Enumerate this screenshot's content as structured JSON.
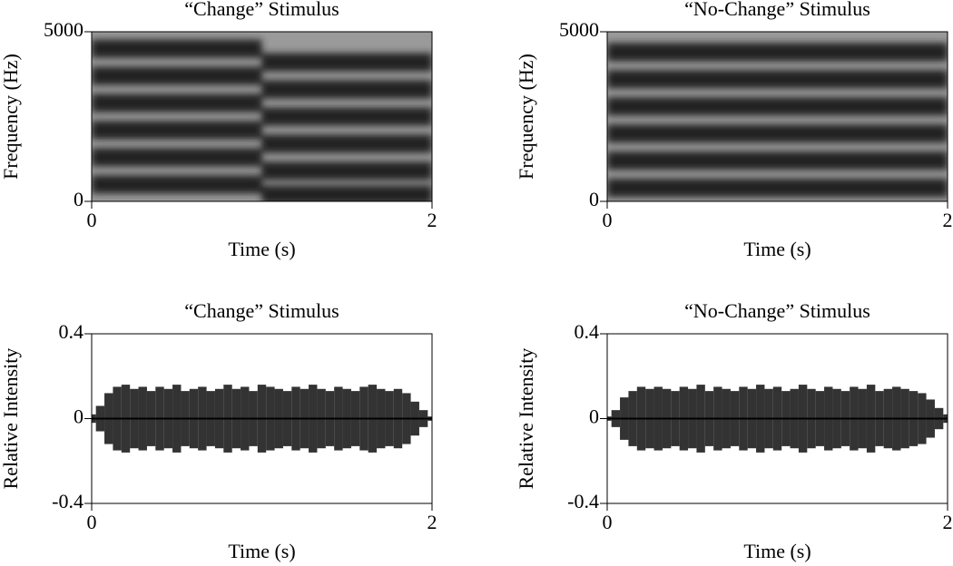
{
  "chart_data": [
    {
      "type": "spectrogram",
      "title": "“Change” Stimulus",
      "xlabel": "Time (s)",
      "ylabel": "Frequency (Hz)",
      "xlim": [
        0,
        2
      ],
      "xticks": [
        0,
        2
      ],
      "ylim": [
        0,
        5000
      ],
      "yticks": [
        0,
        5000
      ],
      "segments": [
        {
          "x": [
            0,
            1
          ],
          "bands": [
            4500,
            3700,
            2900,
            2100,
            1300,
            500
          ]
        },
        {
          "x": [
            1,
            2
          ],
          "bands": [
            4100,
            3300,
            2500,
            1700,
            900,
            200
          ]
        }
      ]
    },
    {
      "type": "spectrogram",
      "title": "“No-Change” Stimulus",
      "xlabel": "Time (s)",
      "ylabel": "Frequency (Hz)",
      "xlim": [
        0,
        2
      ],
      "xticks": [
        0,
        2
      ],
      "ylim": [
        0,
        5000
      ],
      "yticks": [
        0,
        5000
      ],
      "segments": [
        {
          "x": [
            0,
            2
          ],
          "bands": [
            4400,
            3600,
            2800,
            2000,
            1200,
            400
          ]
        }
      ]
    },
    {
      "type": "waveform",
      "title": "“Change” Stimulus",
      "xlabel": "Time (s)",
      "ylabel": "Relative Intensity",
      "xlim": [
        0,
        2
      ],
      "xticks": [
        0,
        2
      ],
      "ylim": [
        -0.4,
        0.4
      ],
      "yticks": [
        0.4,
        0,
        -0.4
      ],
      "x": [
        0,
        0.05,
        0.1,
        0.15,
        0.2,
        0.25,
        0.3,
        0.35,
        0.4,
        0.45,
        0.5,
        0.55,
        0.6,
        0.65,
        0.7,
        0.75,
        0.8,
        0.85,
        0.9,
        0.95,
        1,
        1.05,
        1.1,
        1.15,
        1.2,
        1.25,
        1.3,
        1.35,
        1.4,
        1.45,
        1.5,
        1.55,
        1.6,
        1.65,
        1.7,
        1.75,
        1.8,
        1.85,
        1.9,
        1.95,
        2
      ],
      "amplitude": [
        0.02,
        0.06,
        0.12,
        0.15,
        0.16,
        0.14,
        0.15,
        0.13,
        0.15,
        0.14,
        0.16,
        0.13,
        0.14,
        0.15,
        0.13,
        0.14,
        0.16,
        0.14,
        0.15,
        0.13,
        0.16,
        0.15,
        0.14,
        0.13,
        0.15,
        0.14,
        0.16,
        0.14,
        0.13,
        0.15,
        0.14,
        0.13,
        0.15,
        0.16,
        0.14,
        0.13,
        0.14,
        0.12,
        0.08,
        0.04,
        0.01
      ]
    },
    {
      "type": "waveform",
      "title": "“No-Change” Stimulus",
      "xlabel": "Time (s)",
      "ylabel": "Relative Intensity",
      "xlim": [
        0,
        2
      ],
      "xticks": [
        0,
        2
      ],
      "ylim": [
        -0.4,
        0.4
      ],
      "yticks": [
        0.4,
        0,
        -0.4
      ],
      "x": [
        0,
        0.05,
        0.1,
        0.15,
        0.2,
        0.25,
        0.3,
        0.35,
        0.4,
        0.45,
        0.5,
        0.55,
        0.6,
        0.65,
        0.7,
        0.75,
        0.8,
        0.85,
        0.9,
        0.95,
        1,
        1.05,
        1.1,
        1.15,
        1.2,
        1.25,
        1.3,
        1.35,
        1.4,
        1.45,
        1.5,
        1.55,
        1.6,
        1.65,
        1.7,
        1.75,
        1.8,
        1.85,
        1.9,
        1.95,
        2
      ],
      "amplitude": [
        0.01,
        0.04,
        0.1,
        0.13,
        0.15,
        0.14,
        0.15,
        0.14,
        0.13,
        0.15,
        0.14,
        0.16,
        0.13,
        0.15,
        0.14,
        0.13,
        0.15,
        0.14,
        0.16,
        0.14,
        0.15,
        0.13,
        0.14,
        0.16,
        0.14,
        0.13,
        0.15,
        0.14,
        0.13,
        0.15,
        0.14,
        0.16,
        0.13,
        0.14,
        0.15,
        0.14,
        0.13,
        0.12,
        0.09,
        0.05,
        0.02
      ]
    }
  ]
}
